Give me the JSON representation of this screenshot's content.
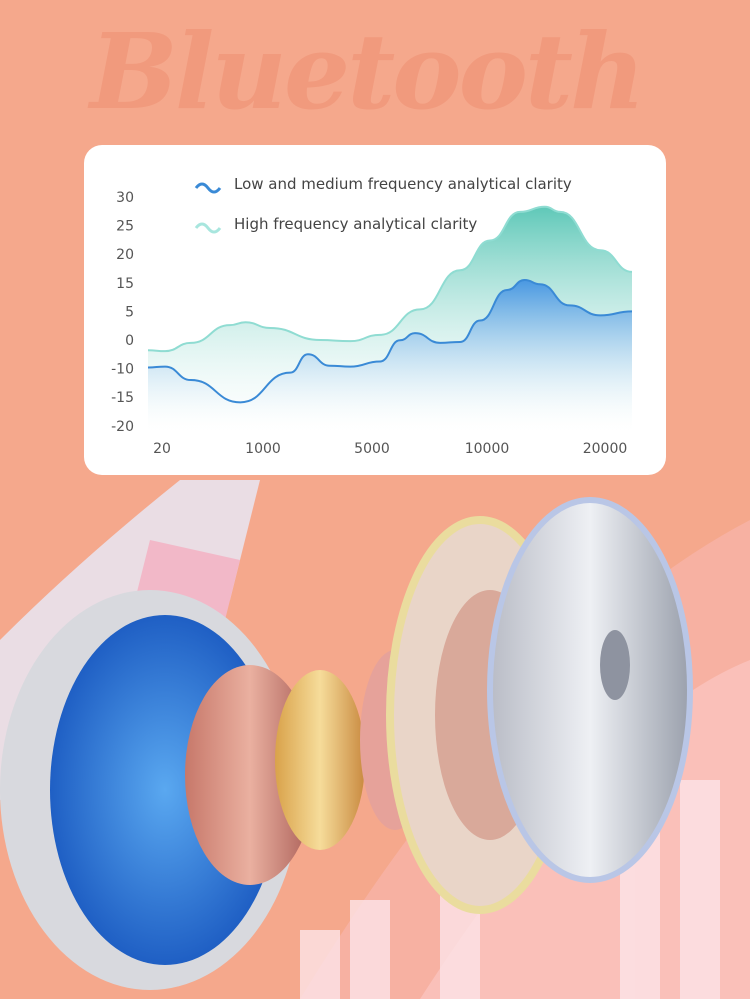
{
  "brand_text": "Bluetooth",
  "colors": {
    "background": "#f5a88c",
    "series_low_mid": "#3a8ad6",
    "series_high": "#8fdcd2",
    "card": "#ffffff"
  },
  "chart_data": {
    "type": "area",
    "title": "",
    "xlabel": "",
    "ylabel": "",
    "x_ticks": [
      "20",
      "1000",
      "5000",
      "10000",
      "20000"
    ],
    "y_ticks": [
      "30",
      "25",
      "20",
      "15",
      "5",
      "0",
      "-10",
      "-15",
      "-20"
    ],
    "xlim": [
      0,
      22300
    ],
    "ylim": [
      -20,
      30
    ],
    "grid": false,
    "legend_placement": "top",
    "series": [
      {
        "name": "Low and medium frequency analytical clarity",
        "color": "#3a8ad6",
        "x": [
          0,
          50,
          300,
          780,
          2000,
          2650,
          3450,
          4200,
          5350,
          6220,
          6870,
          7960,
          8830,
          9700,
          11700,
          13200,
          14500,
          17000,
          19600,
          22300
        ],
        "y": [
          -9.6,
          -9.3,
          -12,
          -15.9,
          -10.7,
          -5,
          -9,
          -9.3,
          -7.5,
          -0.1,
          1.2,
          -1,
          -0.7,
          3.4,
          12.5,
          15.5,
          14.5,
          7.1,
          4.3,
          5
        ]
      },
      {
        "name": "High frequency analytical clarity",
        "color": "#8fdcd2",
        "x": [
          0,
          50,
          300,
          680,
          830,
          1260,
          3100,
          4200,
          5350,
          7090,
          8830,
          10250,
          12800,
          14900,
          16200,
          19600,
          22300
        ],
        "y": [
          -3.6,
          -3.9,
          -1,
          2.6,
          3.1,
          2.1,
          0,
          -0.4,
          0.9,
          5.7,
          17.2,
          22.4,
          27.4,
          28.3,
          27.4,
          20.7,
          16.9
        ]
      }
    ]
  }
}
